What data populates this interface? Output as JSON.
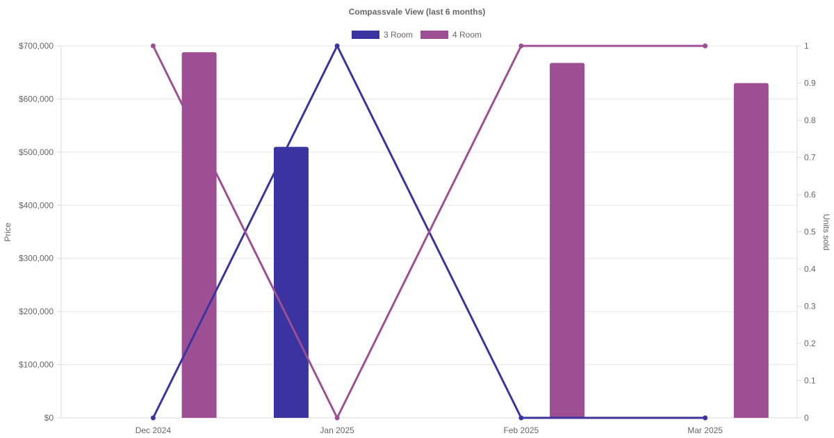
{
  "chart_data": {
    "type": "bar",
    "title": "Compassvale View (last 6 months)",
    "categories": [
      "Dec 2024",
      "Jan 2025",
      "Feb 2025",
      "Mar 2025"
    ],
    "y_left": {
      "label": "Price",
      "range": [
        0,
        700000
      ],
      "ticks": [
        "$0",
        "$100,000",
        "$200,000",
        "$300,000",
        "$400,000",
        "$500,000",
        "$600,000",
        "$700,000"
      ]
    },
    "y_right": {
      "label": "Units sold",
      "range": [
        0,
        1
      ],
      "ticks": [
        "0",
        "0.1",
        "0.2",
        "0.3",
        "0.4",
        "0.5",
        "0.6",
        "0.7",
        "0.8",
        "0.9",
        "1"
      ]
    },
    "grid": true,
    "legend_position": "top-center",
    "series": [
      {
        "name": "3 Room",
        "color": "#3a34a0",
        "price": [
          null,
          510000,
          null,
          null
        ],
        "units_sold": [
          0,
          1,
          0,
          0
        ]
      },
      {
        "name": "4 Room",
        "color": "#9e4f93",
        "price": [
          688000,
          null,
          668000,
          630000
        ],
        "units_sold": [
          1,
          0,
          1,
          1
        ]
      }
    ]
  }
}
